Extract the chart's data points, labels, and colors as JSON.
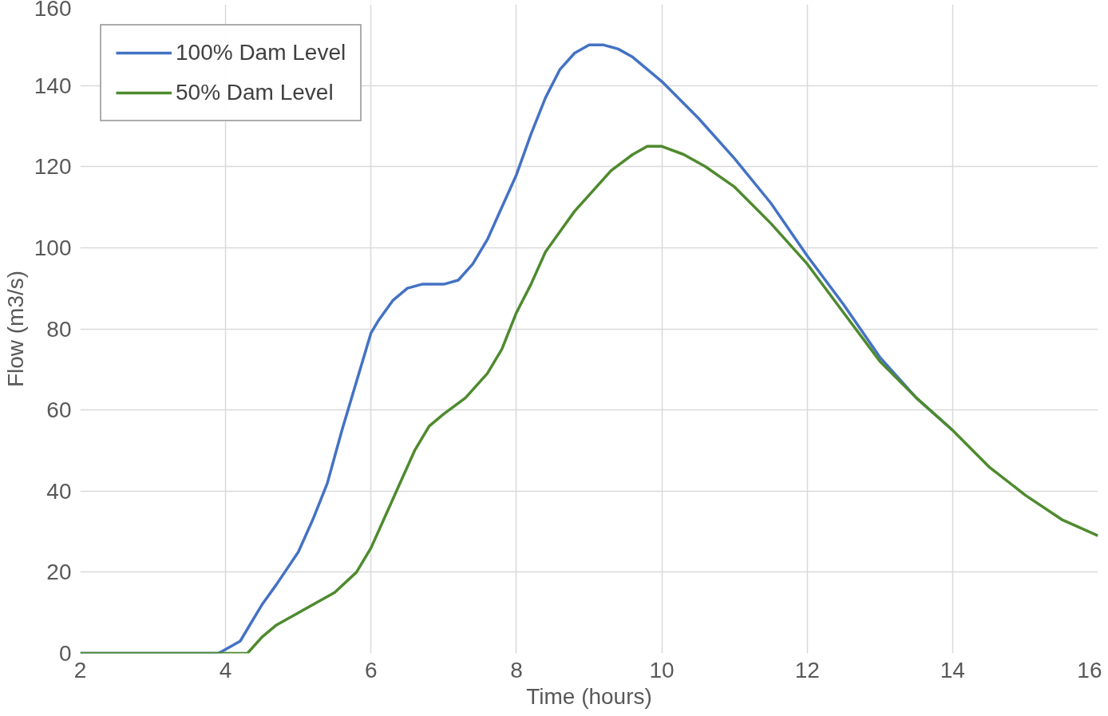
{
  "chart_data": {
    "type": "line",
    "xlabel": "Time (hours)",
    "ylabel": "Flow (m3/s)",
    "xlim": [
      2,
      16
    ],
    "xticks": [
      2,
      4,
      6,
      8,
      10,
      12,
      14,
      16
    ],
    "ylim": [
      0,
      160
    ],
    "yticks": [
      0,
      20,
      40,
      60,
      80,
      100,
      120,
      140,
      160
    ],
    "grid": true,
    "legend": "top left",
    "marker": "none",
    "line_style": "solid",
    "series": [
      {
        "name": "100% Dam Level",
        "color": "#4472c4",
        "x": [
          2,
          3,
          3.9,
          4.0,
          4.2,
          4.3,
          4.5,
          4.7,
          5,
          5.2,
          5.4,
          5.6,
          5.8,
          6,
          6.1,
          6.3,
          6.5,
          6.7,
          7,
          7.2,
          7.4,
          7.6,
          7.8,
          8,
          8.2,
          8.4,
          8.6,
          8.8,
          9,
          9.2,
          9.4,
          9.6,
          9.8,
          10,
          10.5,
          11,
          11.5,
          12,
          12.5,
          13,
          13.5,
          14
        ],
        "values": [
          0,
          0,
          0,
          1,
          3,
          6,
          12,
          17,
          25,
          33,
          42,
          55,
          67,
          79,
          82,
          87,
          90,
          91,
          91,
          92,
          96,
          102,
          110,
          118,
          128,
          137,
          144,
          148,
          150,
          150,
          149,
          147,
          144,
          141,
          132,
          122,
          111,
          98,
          86,
          73,
          63,
          55
        ]
      },
      {
        "name": "50% Dam Level",
        "color": "#4e8a2e",
        "x": [
          2,
          3,
          4,
          4.3,
          4.5,
          4.7,
          5,
          5.5,
          5.8,
          6,
          6.2,
          6.4,
          6.6,
          6.8,
          7,
          7.3,
          7.6,
          7.8,
          8,
          8.2,
          8.4,
          8.6,
          8.8,
          9,
          9.3,
          9.6,
          9.8,
          10,
          10.3,
          10.6,
          11,
          11.5,
          12,
          12.5,
          13,
          13.5,
          14,
          14.5,
          15,
          15.5,
          16
        ],
        "values": [
          0,
          0,
          0,
          0,
          4,
          7,
          10,
          15,
          20,
          26,
          34,
          42,
          50,
          56,
          59,
          63,
          69,
          75,
          84,
          91,
          99,
          104,
          109,
          113,
          119,
          123,
          125,
          125,
          123,
          120,
          115,
          106,
          96,
          84,
          72,
          63,
          55,
          46,
          39,
          33,
          29
        ]
      }
    ]
  }
}
